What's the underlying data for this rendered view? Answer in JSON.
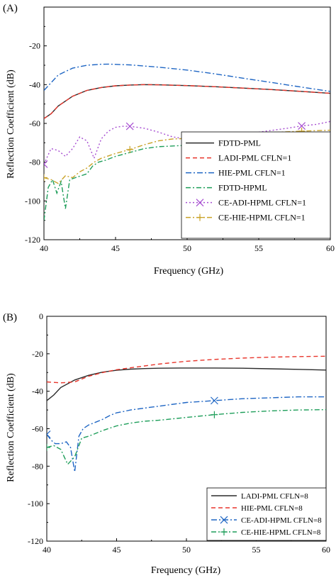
{
  "chart_data": [
    {
      "type": "line",
      "panel_label": "(A)",
      "xlabel": "Frequency (GHz)",
      "ylabel": "Reflection Coefficient (dB)",
      "xlim": [
        40,
        60
      ],
      "ylim": [
        -120,
        0
      ],
      "xticks": [
        "40",
        "45",
        "50",
        "55",
        "60"
      ],
      "yticks": [
        "-20",
        "-40",
        "-60",
        "-80",
        "-100",
        "-120"
      ],
      "grid": false,
      "legend_position": "bottom-right",
      "series": [
        {
          "name": "FDTD-PML",
          "color": "#2b2b2b",
          "dash": "solid",
          "marker": "",
          "x": [
            40,
            40.5,
            41,
            42,
            43,
            44,
            45,
            46,
            47,
            48,
            50,
            52,
            54,
            56,
            58,
            60
          ],
          "y": [
            -57.5,
            -55,
            -51,
            -46,
            -43,
            -41.5,
            -40.6,
            -40.2,
            -40,
            -40.1,
            -40.5,
            -41.1,
            -41.8,
            -42.6,
            -43.5,
            -44.5
          ]
        },
        {
          "name": "LADI-PML CFLN=1",
          "color": "#e8352b",
          "dash": "6,4",
          "marker": "",
          "x": [
            40,
            40.5,
            41,
            42,
            43,
            44,
            45,
            46,
            47,
            48,
            50,
            52,
            54,
            56,
            58,
            60
          ],
          "y": [
            -57.5,
            -55,
            -51,
            -46,
            -43,
            -41.5,
            -40.6,
            -40.2,
            -40,
            -40.1,
            -40.5,
            -41.1,
            -41.8,
            -42.6,
            -43.5,
            -44.5
          ]
        },
        {
          "name": "HIE-PML CFLN=1",
          "color": "#1f66c4",
          "dash": "8,3,2,3",
          "marker": "",
          "x": [
            40,
            41,
            42,
            43,
            44,
            44.5,
            46,
            48,
            50,
            52,
            54,
            56,
            58,
            60
          ],
          "y": [
            -43,
            -35,
            -31.5,
            -30,
            -29.5,
            -29.4,
            -29.8,
            -31,
            -32.5,
            -34.5,
            -36.8,
            -39,
            -41.3,
            -43.5
          ]
        },
        {
          "name": "FDTD-HPML",
          "color": "#1e9e5a",
          "dash": "7,3,2,3",
          "marker": "",
          "x": [
            40,
            40.3,
            40.6,
            40.9,
            41.2,
            41.5,
            41.8,
            42.2,
            42.6,
            43,
            43.4,
            43.8,
            44.3,
            45,
            46,
            47,
            48,
            50,
            52,
            54,
            56,
            58,
            60
          ],
          "y": [
            -110,
            -93,
            -89,
            -96,
            -90,
            -104,
            -89,
            -88,
            -87,
            -86,
            -82,
            -80,
            -79,
            -77,
            -75,
            -73,
            -72,
            -71.3,
            -70.5,
            -70,
            -69,
            -68,
            -67
          ]
        },
        {
          "name": "CE-ADI-HPML CFLN=1",
          "color": "#a64dd1",
          "dash": "2,3",
          "marker": "x",
          "x": [
            40,
            40.5,
            41,
            41.5,
            42,
            42.5,
            43,
            43.5,
            44,
            44.5,
            45,
            45.5,
            46,
            47,
            48,
            49,
            50,
            51,
            52,
            53,
            54,
            55,
            56,
            57,
            58,
            59,
            60
          ],
          "y": [
            -81,
            -73,
            -74,
            -77,
            -73,
            -67,
            -69,
            -78,
            -68,
            -64,
            -62,
            -61.5,
            -61.5,
            -62.5,
            -64.5,
            -67,
            -68,
            -67.5,
            -66.5,
            -66,
            -65,
            -64.5,
            -63.5,
            -62.5,
            -61.3,
            -60.5,
            -59
          ],
          "marker_x": [
            40,
            46,
            52,
            58
          ],
          "marker_y": [
            -81,
            -61.5,
            -66.5,
            -61.3
          ]
        },
        {
          "name": "CE-HIE-HPML CFLN=1",
          "color": "#c9a227",
          "dash": "7,3,2,3",
          "marker": "+",
          "x": [
            40,
            40.5,
            41,
            41.5,
            42,
            42.5,
            43,
            43.5,
            44,
            45,
            46,
            47,
            48,
            49,
            50,
            52,
            54,
            56,
            58,
            60
          ],
          "y": [
            -88,
            -89,
            -91,
            -87,
            -88,
            -85,
            -83,
            -80,
            -78,
            -75.5,
            -73.5,
            -71,
            -69,
            -68,
            -67.8,
            -66.5,
            -65.5,
            -64.7,
            -64,
            -63.5
          ],
          "marker_x": [
            40,
            46,
            52,
            58
          ],
          "marker_y": [
            -88,
            -73.5,
            -66.5,
            -64
          ]
        }
      ]
    },
    {
      "type": "line",
      "panel_label": "(B)",
      "xlabel": "Frequency (GHz)",
      "ylabel": "Reflection Coefficient (dB)",
      "xlim": [
        40,
        60
      ],
      "ylim": [
        -120,
        0
      ],
      "xticks": [
        "40",
        "45",
        "50",
        "55",
        "60"
      ],
      "yticks": [
        "0",
        "-20",
        "-40",
        "-60",
        "-80",
        "-100",
        "-120"
      ],
      "grid": false,
      "legend_position": "bottom-right",
      "series": [
        {
          "name": "LADI-PML CFLN=8",
          "color": "#2b2b2b",
          "dash": "solid",
          "marker": "",
          "x": [
            40,
            40.5,
            41,
            42,
            43,
            44,
            45,
            46,
            47,
            48,
            50,
            52,
            54,
            56,
            58,
            60
          ],
          "y": [
            -45,
            -42,
            -38,
            -34,
            -31.5,
            -29.8,
            -28.8,
            -28.2,
            -27.9,
            -27.7,
            -27.6,
            -27.6,
            -27.7,
            -28,
            -28.3,
            -28.7
          ]
        },
        {
          "name": "HIE-PML CFLN=8",
          "color": "#e8352b",
          "dash": "6,4",
          "marker": "",
          "x": [
            40,
            41,
            42,
            43,
            44,
            45,
            46,
            48,
            50,
            52,
            54,
            56,
            58,
            60
          ],
          "y": [
            -35,
            -35.5,
            -35,
            -32,
            -30,
            -28.5,
            -27.5,
            -25.5,
            -24,
            -23,
            -22.3,
            -21.8,
            -21.5,
            -21.3
          ]
        },
        {
          "name": "CE-ADI-HPML CFLN=8",
          "color": "#1f66c4",
          "dash": "8,3,2,3",
          "marker": "x",
          "x": [
            40,
            40.3,
            40.6,
            41,
            41.4,
            41.7,
            42,
            42.3,
            42.6,
            43,
            43.5,
            44,
            44.5,
            45,
            45.5,
            46,
            47,
            48,
            50,
            52,
            54,
            56,
            58,
            60
          ],
          "y": [
            -63,
            -66,
            -68,
            -68,
            -67,
            -70,
            -83,
            -64,
            -60,
            -58,
            -56.5,
            -55,
            -53,
            -51.5,
            -50.8,
            -50,
            -49,
            -48,
            -46,
            -45,
            -44,
            -43.5,
            -43,
            -43
          ],
          "marker_x": [
            40,
            52
          ],
          "marker_y": [
            -63,
            -45
          ]
        },
        {
          "name": "CE-HIE-HPML CFLN=8",
          "color": "#1e9e5a",
          "dash": "7,3,2,3",
          "marker": "+",
          "x": [
            40,
            40.5,
            41,
            41.5,
            42,
            42.5,
            43,
            43.5,
            44,
            45,
            46,
            47,
            48,
            50,
            52,
            54,
            56,
            58,
            60
          ],
          "y": [
            -70,
            -69,
            -71,
            -79,
            -75,
            -65,
            -64,
            -62.5,
            -61,
            -58.5,
            -57,
            -56,
            -55.5,
            -54,
            -52.5,
            -51.3,
            -50.5,
            -50,
            -49.8
          ],
          "marker_x": [
            40,
            52
          ],
          "marker_y": [
            -70,
            -52.5
          ]
        }
      ]
    }
  ]
}
